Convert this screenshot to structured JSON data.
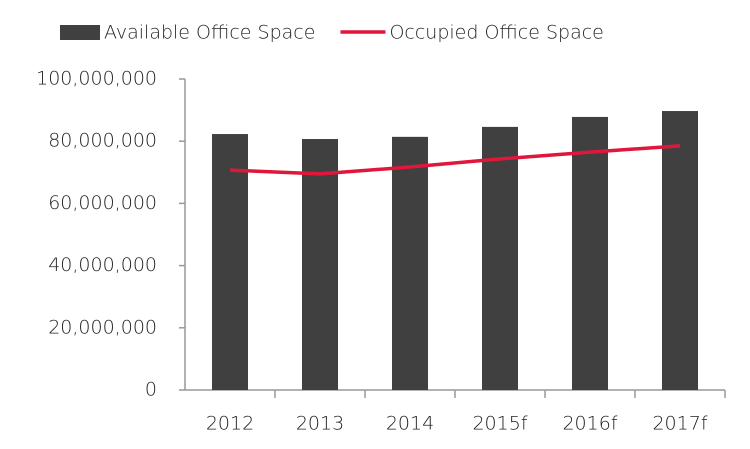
{
  "chart_data": {
    "type": "bar",
    "categories": [
      "2012",
      "2013",
      "2014",
      "2015f",
      "2016f",
      "2017f"
    ],
    "series": [
      {
        "name": "Available Office Space",
        "type": "bar",
        "color": "#404040",
        "values": [
          82300000,
          80700000,
          81400000,
          84600000,
          87800000,
          89700000
        ]
      },
      {
        "name": "Occupied Office Space",
        "type": "line",
        "color": "#e0173a",
        "values": [
          70700000,
          69500000,
          71700000,
          74300000,
          76500000,
          78500000
        ]
      }
    ],
    "ylim": [
      0,
      100000000
    ],
    "yticks": [
      0,
      {
        "value": 20000000,
        "label": "20,000,000"
      },
      {
        "value": 40000000,
        "label": "40,000,000"
      },
      {
        "value": 60000000,
        "label": "60,000,000"
      },
      {
        "value": 80000000,
        "label": "80,000,000"
      },
      {
        "value": 100000000,
        "label": "100,000,000"
      }
    ],
    "grid": false,
    "legend": "top"
  }
}
